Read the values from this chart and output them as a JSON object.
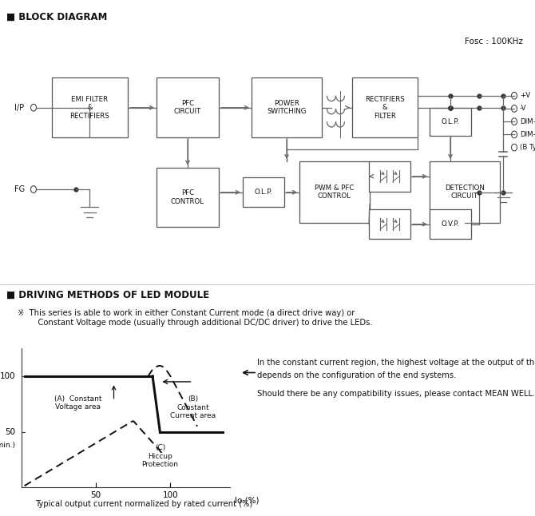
{
  "bg_color": "#ffffff",
  "block_diagram_title": "BLOCK DIAGRAM",
  "driving_title": "DRIVING METHODS OF LED MODULE",
  "fosc_text": "Fosc : 100KHz",
  "driving_note_line1": "※  This series is able to work in either Constant Current mode (a direct drive way) or",
  "driving_note_line2": "    Constant Voltage mode (usually through additional DC/DC driver) to drive the LEDs.",
  "right_text_line1": "In the constant current region, the highest voltage at the output of the driver",
  "right_text_line2": "depends on the configuration of the end systems.",
  "right_text_line3": "Should there be any compatibility issues, please contact MEAN WELL.",
  "caption": "Typical output current normalized by rated current (%)"
}
